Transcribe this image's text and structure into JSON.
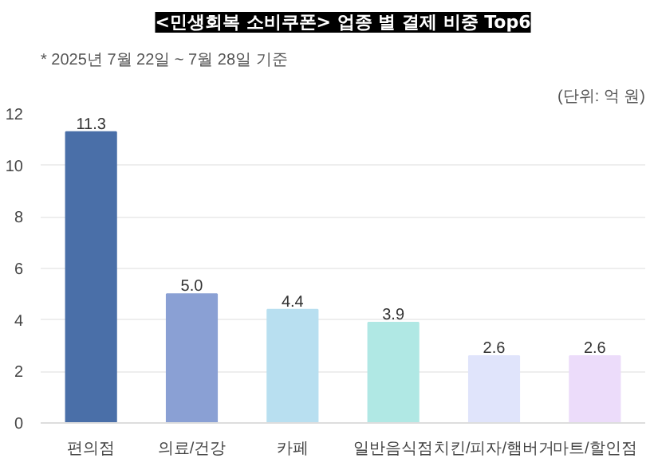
{
  "chart_data": {
    "type": "bar",
    "title": "<민생회복 소비쿠폰> 업종 별 결제 비중 Top6",
    "subtitle": "* 2025년 7월 22일 ~ 7월 28일 기준",
    "annotations": [
      "(단위: 억 원)"
    ],
    "categories": [
      "편의점",
      "의료/건강",
      "카페",
      "일반음식점",
      "치킨/피자/햄버거",
      "마트/할인점"
    ],
    "values": [
      11.3,
      5.0,
      4.4,
      3.9,
      2.6,
      2.6
    ],
    "value_labels": [
      "11.3",
      "5.0",
      "4.4",
      "3.9",
      "2.6",
      "2.6"
    ],
    "colors": [
      "#4a6fa8",
      "#8aa0d4",
      "#b8dff0",
      "#b0e8e4",
      "#e0e4fb",
      "#ecdcfa"
    ],
    "ylim": [
      0,
      12
    ],
    "yticks": [
      0,
      2,
      4,
      6,
      8,
      10,
      12
    ],
    "grid": "y"
  }
}
